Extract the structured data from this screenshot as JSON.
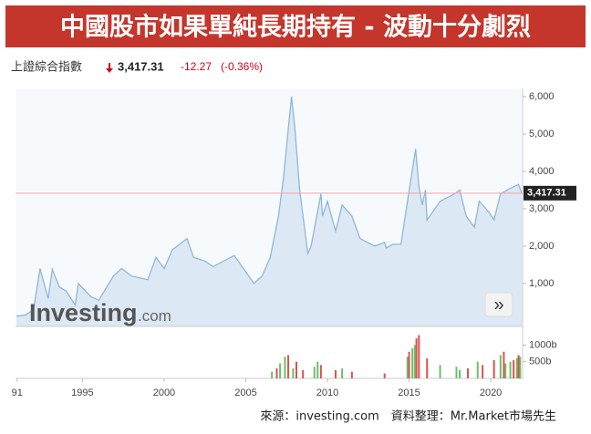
{
  "header": {
    "title": "中國股市如果單純長期持有 - 波動十分劇烈",
    "index_name": "上證綜合指數",
    "price": "3,417.31",
    "change": "-12.27",
    "change_pct": "(-0.36%)"
  },
  "chart_data": {
    "type": "area",
    "series": [
      {
        "color": "#8fb7d9",
        "x": [
          1990.95,
          1991.5,
          1992.0,
          1992.4,
          1992.9,
          1993.15,
          1993.6,
          1994.0,
          1994.55,
          1994.75,
          1995.5,
          1996.0,
          1996.9,
          1997.4,
          1998.0,
          1999.0,
          1999.5,
          2000.0,
          2000.5,
          2001.4,
          2001.8,
          2002.5,
          2003.0,
          2004.3,
          2005.5,
          2006.0,
          2006.5,
          2007.0,
          2007.3,
          2007.8,
          2008.0,
          2008.3,
          2008.8,
          2009.0,
          2009.6,
          2009.7,
          2010.0,
          2010.5,
          2010.9,
          2011.5,
          2012.0,
          2012.9,
          2013.5,
          2013.6,
          2014.0,
          2014.5,
          2014.9,
          2015.4,
          2015.6,
          2015.8,
          2016.0,
          2016.1,
          2016.9,
          2017.8,
          2018.1,
          2018.5,
          2019.0,
          2019.3,
          2019.9,
          2020.2,
          2020.6,
          2021.0,
          2021.7,
          2021.9
        ],
        "values": [
          127,
          150,
          300,
          1400,
          600,
          1380,
          900,
          800,
          420,
          1000,
          650,
          550,
          1200,
          1400,
          1200,
          1100,
          1700,
          1400,
          1900,
          2200,
          1700,
          1600,
          1450,
          1750,
          1000,
          1200,
          1700,
          2800,
          3800,
          6000,
          5200,
          3500,
          1800,
          2000,
          3400,
          2800,
          3200,
          2400,
          3100,
          2800,
          2200,
          2000,
          2100,
          1950,
          2050,
          2050,
          3200,
          4600,
          3600,
          3100,
          3500,
          2700,
          3200,
          3400,
          3500,
          2800,
          2500,
          3200,
          2900,
          2700,
          3400,
          3500,
          3650,
          3417.31
        ]
      }
    ],
    "current": {
      "value": 3417.31,
      "label": "3,417.31"
    },
    "xlim": [
      1990.9,
      2021.95
    ],
    "xticks": [
      {
        "value": 1991,
        "label": "91"
      },
      1995,
      2000,
      2005,
      2010,
      2015,
      2020
    ],
    "ylim": [
      -150,
      6220
    ],
    "yticks": [
      {
        "value": 1000,
        "label": "1,000"
      },
      {
        "value": 2000,
        "label": "2,000"
      },
      {
        "value": 3000,
        "label": "3,000"
      },
      {
        "value": 4000,
        "label": "4,000"
      },
      {
        "value": 5000,
        "label": "5,000"
      },
      {
        "value": 6000,
        "label": "6,000"
      }
    ],
    "volume": {
      "type": "bar",
      "ylim": [
        0,
        1450
      ],
      "yticks": [
        {
          "value": 500,
          "label": "500b"
        },
        {
          "value": 1000,
          "label": "1000b"
        }
      ],
      "series": [
        {
          "color": "#6cbf6c",
          "x": [
            2006.6,
            2007.1,
            2007.4,
            2007.9,
            2009.2,
            2009.4,
            2010.9,
            2014.9,
            2015.2,
            2015.35,
            2016.9,
            2017.9,
            2018.1,
            2019.2,
            2020.6,
            2020.9,
            2021.2,
            2021.6,
            2021.8
          ],
          "values": [
            200,
            450,
            650,
            300,
            350,
            500,
            300,
            650,
            900,
            1000,
            400,
            350,
            250,
            500,
            700,
            450,
            500,
            600,
            650
          ]
        },
        {
          "color": "#d9534f",
          "x": [
            2006.9,
            2007.6,
            2008.1,
            2008.5,
            2009.6,
            2010.5,
            2011.5,
            2013.5,
            2015.0,
            2015.45,
            2015.6,
            2016.1,
            2018.6,
            2019.5,
            2020.2,
            2020.8,
            2021.4,
            2021.7
          ],
          "values": [
            300,
            700,
            500,
            250,
            400,
            250,
            200,
            150,
            800,
            1200,
            1300,
            600,
            300,
            400,
            550,
            800,
            550,
            700
          ]
        }
      ]
    },
    "logo": {
      "brand": "Investing",
      "suffix": ".com"
    },
    "button_label": "»",
    "source": "來源：investing.com　資料整理：Mr.Market市場先生"
  }
}
